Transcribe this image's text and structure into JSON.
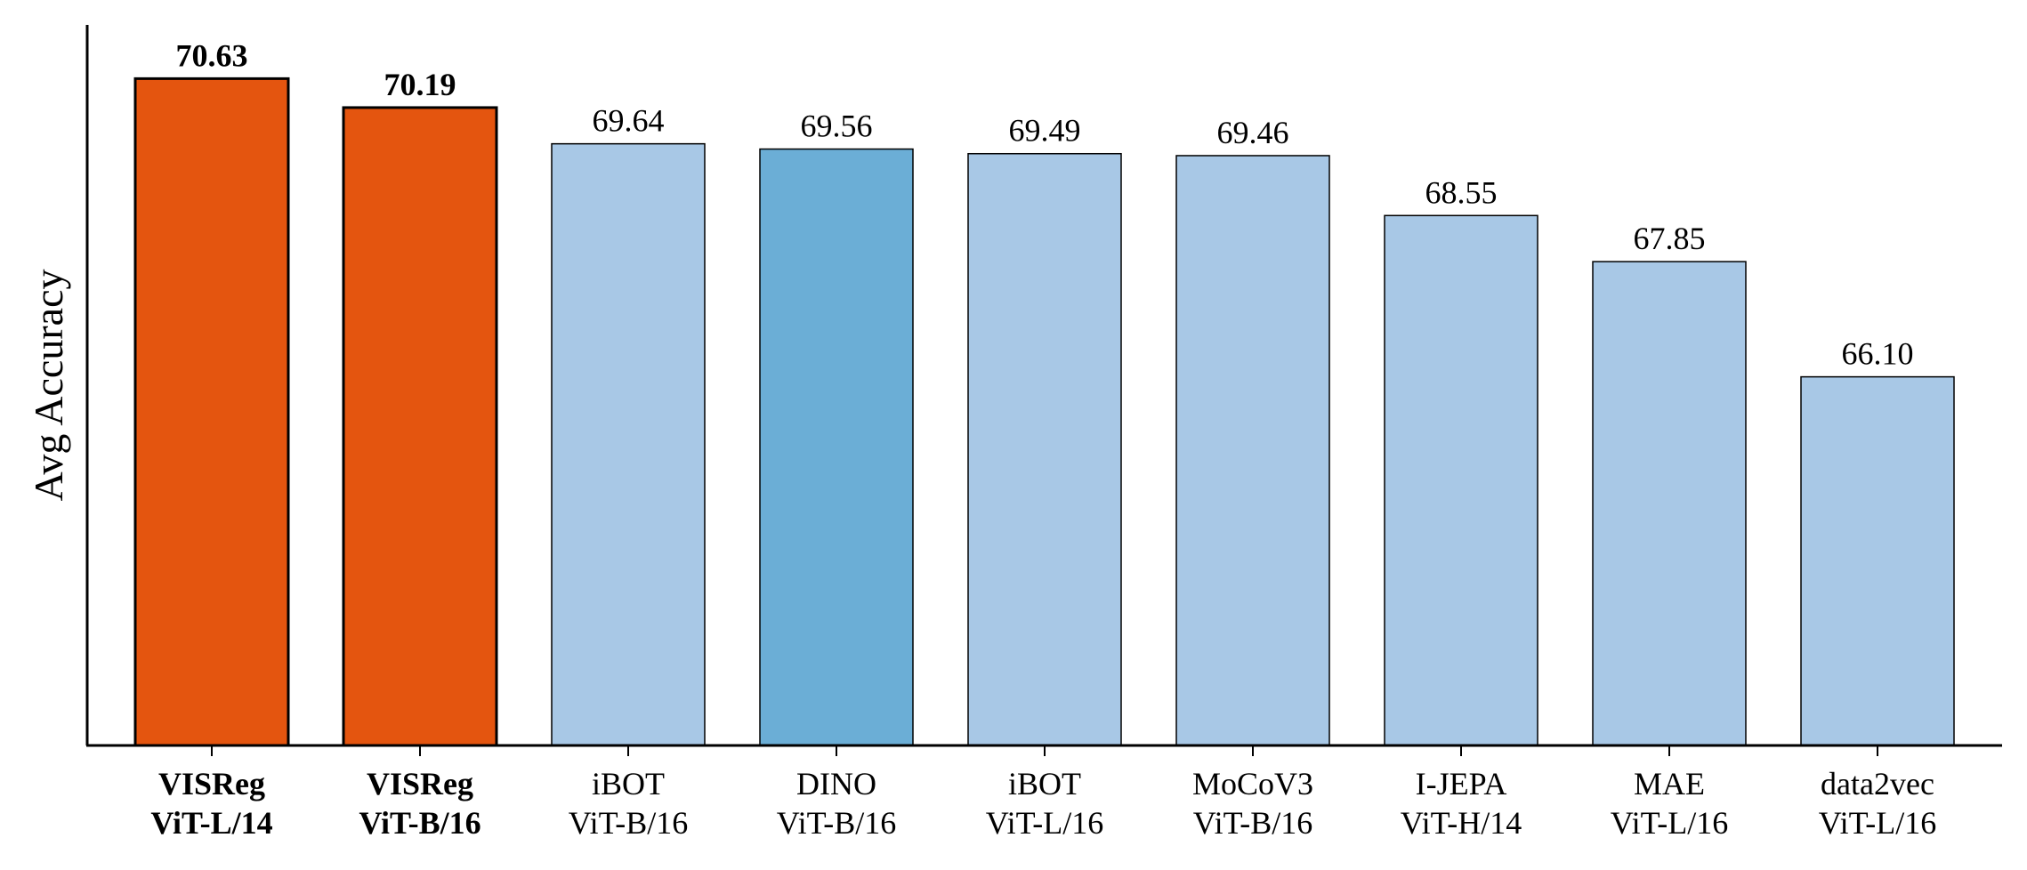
{
  "chart_data": {
    "type": "bar",
    "title": "",
    "xlabel": "",
    "ylabel": "Avg Accuracy",
    "ylim": [
      60.5,
      71.3
    ],
    "grid": false,
    "categories": [
      [
        "VISReg",
        "ViT-L/14"
      ],
      [
        "VISReg",
        "ViT-B/16"
      ],
      [
        "iBOT",
        "ViT-B/16"
      ],
      [
        "DINO",
        "ViT-B/16"
      ],
      [
        "iBOT",
        "ViT-L/16"
      ],
      [
        "MoCoV3",
        "ViT-B/16"
      ],
      [
        "I-JEPA",
        "ViT-H/14"
      ],
      [
        "MAE",
        "ViT-L/16"
      ],
      [
        "data2vec",
        "ViT-L/16"
      ]
    ],
    "values": [
      70.63,
      70.19,
      69.64,
      69.56,
      69.49,
      69.46,
      68.55,
      67.85,
      66.1
    ],
    "value_labels": [
      "70.63",
      "70.19",
      "69.64",
      "69.56",
      "69.49",
      "69.46",
      "68.55",
      "67.85",
      "66.10"
    ],
    "highlight": [
      true,
      true,
      false,
      false,
      false,
      false,
      false,
      false,
      false
    ],
    "colors": [
      "#e4550f",
      "#e4550f",
      "#a8c8e6",
      "#6baed6",
      "#a8c8e6",
      "#a8c8e6",
      "#a8c8e6",
      "#a8c8e6",
      "#a8c8e6"
    ]
  }
}
